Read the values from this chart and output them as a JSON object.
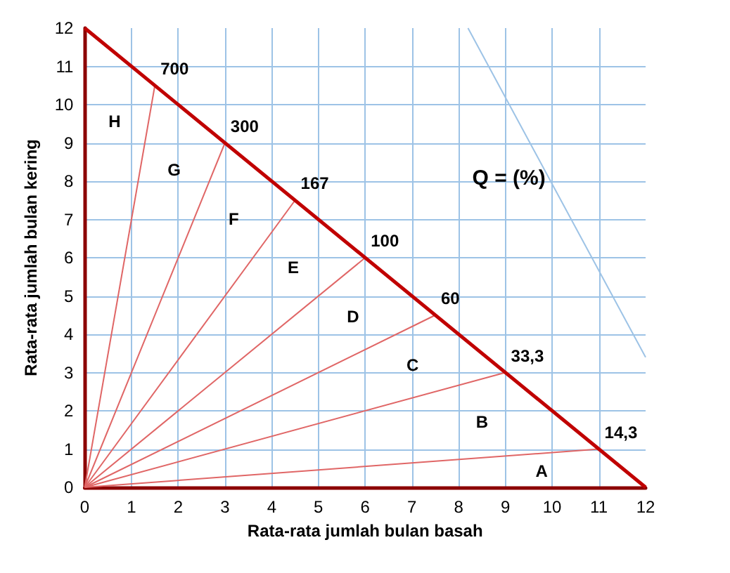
{
  "chart_data": {
    "type": "line",
    "xlabel": "Rata-rata jumlah bulan basah",
    "ylabel": "Rata-rata jumlah bulan kering",
    "xlim": [
      0,
      12
    ],
    "ylim": [
      0,
      12
    ],
    "xticks": [
      0,
      1,
      2,
      3,
      4,
      5,
      6,
      7,
      8,
      9,
      10,
      11,
      12
    ],
    "yticks": [
      0,
      1,
      2,
      3,
      4,
      5,
      6,
      7,
      8,
      9,
      10,
      11,
      12
    ],
    "grid": true,
    "marker": "none",
    "line_style": "solid",
    "series": [
      {
        "color": "#c00000",
        "x": [
          0,
          12
        ],
        "values": [
          12,
          0
        ]
      },
      {
        "name": "14,3",
        "color": "#e06666",
        "x": [
          0,
          11
        ],
        "values": [
          0,
          1
        ]
      },
      {
        "name": "33,3",
        "color": "#e06666",
        "x": [
          0,
          9
        ],
        "values": [
          0,
          3
        ]
      },
      {
        "name": "60",
        "color": "#e06666",
        "x": [
          0,
          7.5
        ],
        "values": [
          0,
          4.5
        ]
      },
      {
        "name": "100",
        "color": "#e06666",
        "x": [
          0,
          6
        ],
        "values": [
          0,
          6
        ]
      },
      {
        "name": "167",
        "color": "#e06666",
        "x": [
          0,
          4.5
        ],
        "values": [
          0,
          7.5
        ]
      },
      {
        "name": "300",
        "color": "#e06666",
        "x": [
          0,
          3
        ],
        "values": [
          0,
          9
        ]
      },
      {
        "name": "700",
        "color": "#e06666",
        "x": [
          0,
          1.5
        ],
        "values": [
          0,
          10.5
        ]
      },
      {
        "name": "Q = (%)",
        "color": "#9dc3e6",
        "x": [
          8.2,
          12
        ],
        "values": [
          12,
          3.4
        ]
      }
    ],
    "annotations": [
      "A",
      "B",
      "C",
      "D",
      "E",
      "F",
      "G",
      "H"
    ]
  }
}
